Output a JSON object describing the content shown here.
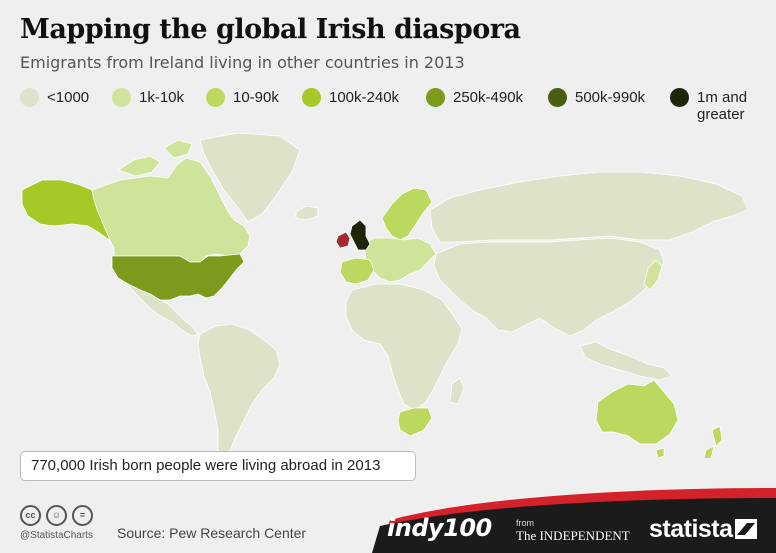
{
  "title": "Mapping the global Irish diaspora",
  "subtitle": "Emigrants from Ireland living in other countries in 2013",
  "legend": [
    {
      "label": "<1000",
      "color": "#dde3c8"
    },
    {
      "label": "1k-10k",
      "color": "#cfe39a"
    },
    {
      "label": "10-90k",
      "color": "#bcd85e"
    },
    {
      "label": "100k-240k",
      "color": "#a6c928"
    },
    {
      "label": "250k-490k",
      "color": "#7d9a1c"
    },
    {
      "label": "500k-990k",
      "color": "#4a5e12"
    },
    {
      "label": "1m and greater",
      "color": "#1e2608"
    }
  ],
  "colors": {
    "ireland": "#a42a2e",
    "ocean": "#efefef",
    "footer_red": "#d4222a",
    "footer_dark": "#1b1b1b"
  },
  "countries": {
    "united_kingdom": "1m and greater",
    "united_states": "250k-490k",
    "australia": "10-90k",
    "canada": "1k-10k",
    "spain": "10-90k",
    "germany": "1k-10k",
    "south_africa": "10-90k",
    "new_zealand": "10-90k",
    "japan": "1k-10k"
  },
  "note": "770,000 Irish born people were living abroad in 2013",
  "footer": {
    "cc_icons": [
      "cc-icon",
      "person-icon",
      "equals-icon"
    ],
    "handle": "@StatistaCharts",
    "source": "Source: Pew Research Center",
    "indy": "indy100",
    "from": "from",
    "independent": "The INDEPENDENT",
    "statista": "statista"
  }
}
